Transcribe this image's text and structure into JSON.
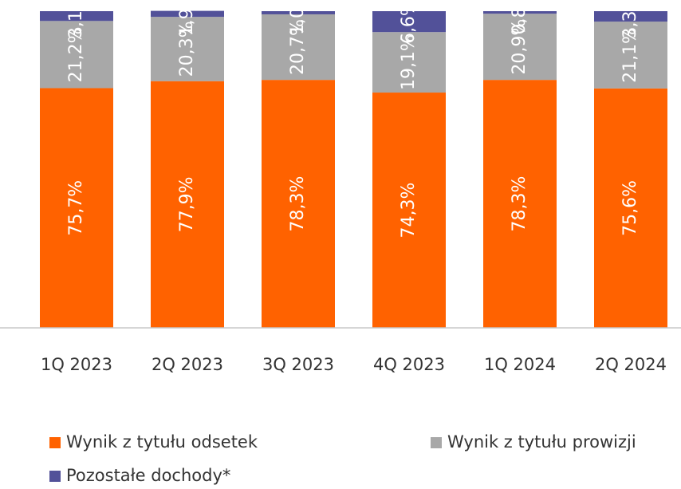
{
  "chart_data": {
    "type": "stacked_bar",
    "categories": [
      "1Q 2023",
      "2Q 2023",
      "3Q 2023",
      "4Q 2023",
      "1Q 2024",
      "2Q 2024"
    ],
    "series": [
      {
        "name": "Wynik z tytułu odsetek",
        "color": "#ff6200",
        "values": [
          75.7,
          77.9,
          78.3,
          74.3,
          78.3,
          75.6
        ],
        "value_labels": [
          "75,7%",
          "77,9%",
          "78,3%",
          "74,3%",
          "78,3%",
          "75,6%"
        ]
      },
      {
        "name": "Wynik z tytułu prowizji",
        "color": "#a8a8a8",
        "values": [
          21.2,
          20.3,
          20.7,
          19.1,
          20.9,
          21.1
        ],
        "value_labels": [
          "21,2%",
          "20,3%",
          "20,7%",
          "19,1%",
          "20,9%",
          "21,1%"
        ]
      },
      {
        "name": "Pozostałe dochody*",
        "color": "#525199",
        "values": [
          3.1,
          1.9,
          1.0,
          6.6,
          0.8,
          3.3
        ],
        "value_labels": [
          "3,1%",
          "1,9%",
          "1,0%",
          "6,6%",
          "0,8%",
          "3,3%"
        ]
      }
    ],
    "ylim": [
      0,
      100
    ]
  }
}
